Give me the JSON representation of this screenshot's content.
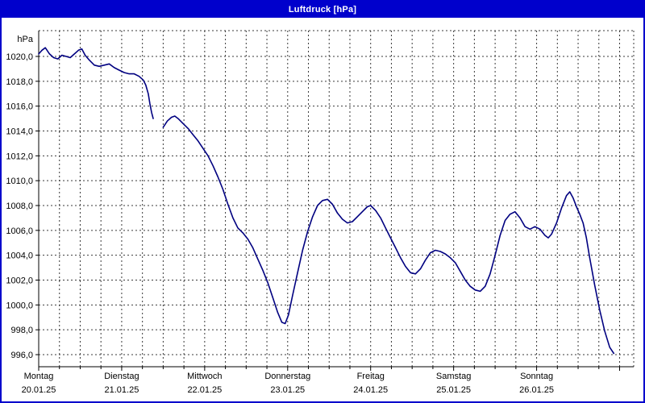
{
  "window": {
    "title": "Luftdruck [hPa]",
    "title_bar_color": "#0000cc",
    "border_color": "#0000cc"
  },
  "chart_data": {
    "type": "line",
    "title": "Luftdruck [hPa]",
    "ylabel": "hPa",
    "y_unit_label": "hPa",
    "ylim": [
      995,
      1022
    ],
    "yticks": [
      996,
      998,
      1000,
      1002,
      1004,
      1006,
      1008,
      1010,
      1012,
      1014,
      1016,
      1018,
      1020
    ],
    "ytick_step": 2,
    "decimal_separator": ",",
    "grid": "dashed",
    "x_total_days": 7.17,
    "x_minor_step_days": 0.25,
    "days": [
      {
        "name": "Montag",
        "date": "20.01.25"
      },
      {
        "name": "Dienstag",
        "date": "21.01.25"
      },
      {
        "name": "Mittwoch",
        "date": "22.01.25"
      },
      {
        "name": "Donnerstag",
        "date": "23.01.25"
      },
      {
        "name": "Freitag",
        "date": "24.01.25"
      },
      {
        "name": "Samstag",
        "date": "25.01.25"
      },
      {
        "name": "Sonntag",
        "date": "26.01.25"
      }
    ],
    "series": [
      {
        "name": "Luftdruck",
        "unit": "hPa",
        "color": "#000080",
        "segments": [
          [
            [
              0.0,
              1020.2
            ],
            [
              0.04,
              1020.5
            ],
            [
              0.08,
              1020.7
            ],
            [
              0.13,
              1020.2
            ],
            [
              0.18,
              1019.9
            ],
            [
              0.23,
              1019.8
            ],
            [
              0.28,
              1020.1
            ],
            [
              0.33,
              1020.0
            ],
            [
              0.38,
              1019.9
            ],
            [
              0.43,
              1020.2
            ],
            [
              0.48,
              1020.5
            ],
            [
              0.52,
              1020.6
            ],
            [
              0.56,
              1020.1
            ],
            [
              0.61,
              1019.7
            ],
            [
              0.67,
              1019.3
            ],
            [
              0.73,
              1019.2
            ],
            [
              0.79,
              1019.3
            ],
            [
              0.85,
              1019.4
            ],
            [
              0.91,
              1019.1
            ],
            [
              0.97,
              1018.9
            ],
            [
              1.03,
              1018.7
            ],
            [
              1.09,
              1018.6
            ],
            [
              1.15,
              1018.6
            ],
            [
              1.21,
              1018.4
            ],
            [
              1.26,
              1018.1
            ],
            [
              1.29,
              1017.7
            ],
            [
              1.32,
              1017.0
            ],
            [
              1.34,
              1016.2
            ],
            [
              1.36,
              1015.5
            ],
            [
              1.38,
              1015.0
            ]
          ],
          [
            [
              1.5,
              1014.3
            ],
            [
              1.55,
              1014.8
            ],
            [
              1.6,
              1015.1
            ],
            [
              1.64,
              1015.2
            ],
            [
              1.68,
              1015.0
            ],
            [
              1.74,
              1014.6
            ],
            [
              1.8,
              1014.2
            ],
            [
              1.86,
              1013.7
            ],
            [
              1.92,
              1013.2
            ],
            [
              1.98,
              1012.6
            ],
            [
              2.04,
              1012.0
            ],
            [
              2.1,
              1011.2
            ],
            [
              2.16,
              1010.3
            ],
            [
              2.22,
              1009.3
            ],
            [
              2.28,
              1008.1
            ],
            [
              2.34,
              1007.0
            ],
            [
              2.4,
              1006.2
            ],
            [
              2.46,
              1005.8
            ],
            [
              2.52,
              1005.3
            ],
            [
              2.58,
              1004.6
            ],
            [
              2.64,
              1003.7
            ],
            [
              2.7,
              1002.8
            ],
            [
              2.76,
              1001.8
            ],
            [
              2.82,
              1000.6
            ],
            [
              2.88,
              999.4
            ],
            [
              2.93,
              998.6
            ],
            [
              2.97,
              998.5
            ],
            [
              3.01,
              999.2
            ],
            [
              3.06,
              1000.8
            ],
            [
              3.12,
              1002.6
            ],
            [
              3.18,
              1004.4
            ],
            [
              3.24,
              1005.9
            ],
            [
              3.3,
              1007.1
            ],
            [
              3.36,
              1008.0
            ],
            [
              3.42,
              1008.4
            ],
            [
              3.48,
              1008.5
            ],
            [
              3.54,
              1008.1
            ],
            [
              3.6,
              1007.4
            ],
            [
              3.66,
              1006.9
            ],
            [
              3.72,
              1006.6
            ],
            [
              3.78,
              1006.7
            ],
            [
              3.84,
              1007.1
            ],
            [
              3.9,
              1007.5
            ],
            [
              3.96,
              1007.9
            ],
            [
              4.0,
              1008.0
            ],
            [
              4.06,
              1007.6
            ],
            [
              4.12,
              1007.0
            ],
            [
              4.18,
              1006.2
            ],
            [
              4.24,
              1005.4
            ],
            [
              4.3,
              1004.6
            ],
            [
              4.36,
              1003.8
            ],
            [
              4.42,
              1003.1
            ],
            [
              4.48,
              1002.6
            ],
            [
              4.54,
              1002.5
            ],
            [
              4.6,
              1002.9
            ],
            [
              4.66,
              1003.6
            ],
            [
              4.72,
              1004.2
            ],
            [
              4.78,
              1004.4
            ],
            [
              4.84,
              1004.3
            ],
            [
              4.9,
              1004.1
            ],
            [
              4.96,
              1003.8
            ],
            [
              5.02,
              1003.4
            ],
            [
              5.08,
              1002.7
            ],
            [
              5.14,
              1002.0
            ],
            [
              5.2,
              1001.5
            ],
            [
              5.26,
              1001.2
            ],
            [
              5.32,
              1001.1
            ],
            [
              5.38,
              1001.5
            ],
            [
              5.44,
              1002.5
            ],
            [
              5.5,
              1004.0
            ],
            [
              5.56,
              1005.6
            ],
            [
              5.62,
              1006.8
            ],
            [
              5.68,
              1007.3
            ],
            [
              5.74,
              1007.5
            ],
            [
              5.8,
              1007.0
            ],
            [
              5.86,
              1006.3
            ],
            [
              5.92,
              1006.1
            ],
            [
              5.98,
              1006.3
            ],
            [
              6.04,
              1006.1
            ],
            [
              6.1,
              1005.6
            ],
            [
              6.14,
              1005.4
            ],
            [
              6.18,
              1005.7
            ],
            [
              6.24,
              1006.6
            ],
            [
              6.3,
              1007.8
            ],
            [
              6.36,
              1008.8
            ],
            [
              6.4,
              1009.1
            ],
            [
              6.44,
              1008.6
            ],
            [
              6.48,
              1007.9
            ],
            [
              6.52,
              1007.3
            ],
            [
              6.56,
              1006.6
            ],
            [
              6.6,
              1005.4
            ],
            [
              6.64,
              1003.8
            ],
            [
              6.7,
              1001.6
            ],
            [
              6.76,
              999.6
            ],
            [
              6.82,
              997.9
            ],
            [
              6.88,
              996.6
            ],
            [
              6.93,
              996.1
            ]
          ]
        ]
      }
    ]
  }
}
